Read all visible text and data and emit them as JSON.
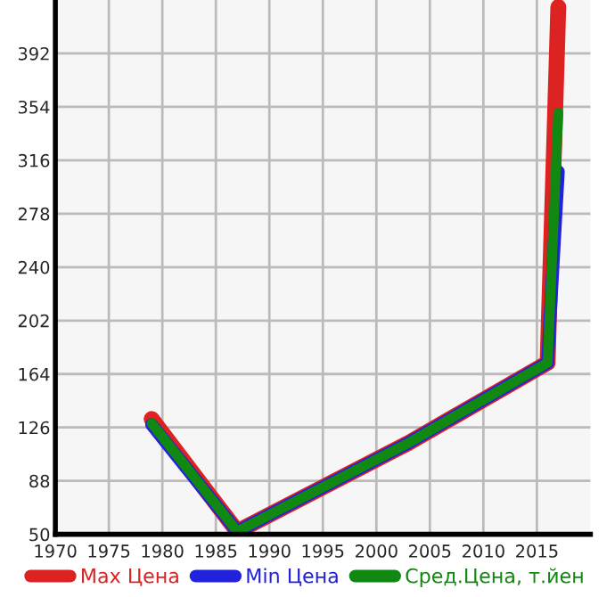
{
  "chart_data": {
    "type": "line",
    "x": [
      1979,
      1987,
      2003,
      2016,
      2017
    ],
    "series": [
      {
        "name": "Max Цена",
        "color": "#dd2222",
        "values": [
          132,
          52,
          115,
          172,
          425
        ]
      },
      {
        "name": "Min Цена",
        "color": "#2222dd",
        "values": [
          128,
          52,
          115,
          172,
          308
        ]
      },
      {
        "name": "Сред.Цена, т.йен",
        "color": "#118811",
        "values": [
          129,
          52,
          115,
          172,
          350
        ]
      }
    ],
    "xlim": [
      1970,
      2020
    ],
    "xticks": [
      1970,
      1975,
      1980,
      1985,
      1990,
      1995,
      2000,
      2005,
      2010,
      2015
    ],
    "ylim": [
      50,
      430
    ],
    "yticks": [
      50,
      88,
      126,
      164,
      202,
      240,
      278,
      316,
      354,
      392
    ],
    "grid": true,
    "legend": "bottom",
    "marker": "none",
    "line_style": "solid"
  }
}
